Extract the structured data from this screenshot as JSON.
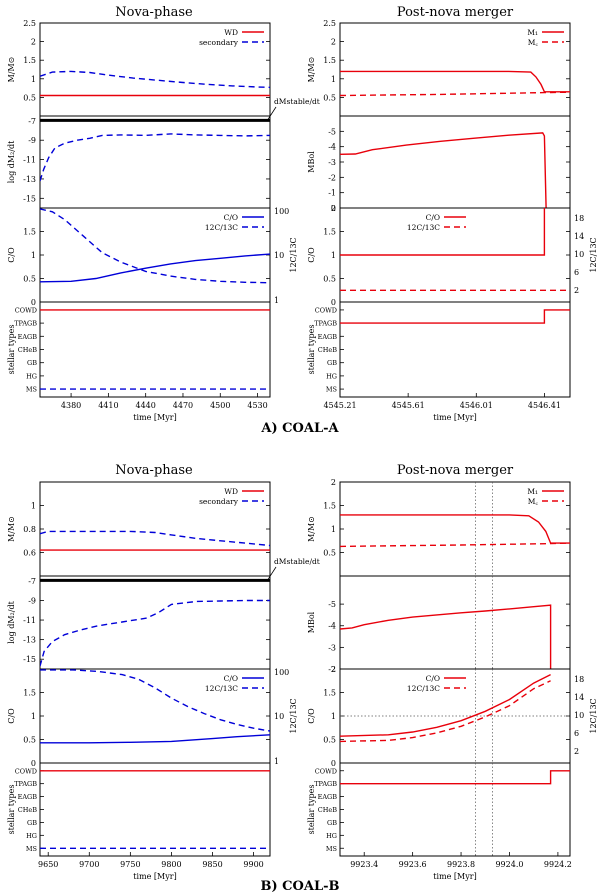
{
  "figure": {
    "panel_a_caption": "A) COAL-A",
    "panel_b_caption": "B) COAL-B",
    "left_header": "Nova-phase",
    "right_header": "Post-nova merger",
    "xlabel": "time [Myr]"
  },
  "colors": {
    "red": "#e8000b",
    "blue": "#0000d8",
    "black": "#000000",
    "grid": "#555555"
  },
  "chart_data": [
    {
      "id": "A-left-mass",
      "type": "line",
      "ylabel": "M/M⊙",
      "xlim": [
        4355,
        4540
      ],
      "ylim": [
        0,
        2.5
      ],
      "yticks": [
        0.5,
        1,
        1.5,
        2,
        2.5
      ],
      "legend": "top-right",
      "series": [
        {
          "name": "WD",
          "color": "red",
          "dash": "",
          "x": [
            4355,
            4540
          ],
          "y": [
            0.55,
            0.55
          ]
        },
        {
          "name": "secondary",
          "color": "blue",
          "dash": "6,4",
          "x": [
            4355,
            4365,
            4380,
            4395,
            4410,
            4430,
            4450,
            4470,
            4490,
            4510,
            4530,
            4540
          ],
          "y": [
            1.07,
            1.18,
            1.2,
            1.17,
            1.1,
            1.02,
            0.96,
            0.9,
            0.85,
            0.81,
            0.78,
            0.77
          ]
        }
      ]
    },
    {
      "id": "A-left-mdot",
      "type": "line",
      "ylabel": "log dM₂/dt",
      "xlim": [
        4355,
        4540
      ],
      "ylim": [
        -16,
        -6.5
      ],
      "yticks": [
        -7,
        -9,
        -11,
        -13,
        -15
      ],
      "annotation": "dMstable/dt",
      "series": [
        {
          "name": "dMstable/dt",
          "color": "black",
          "dash": "",
          "width": 3,
          "x": [
            4355,
            4540
          ],
          "y": [
            -6.95,
            -6.95
          ]
        },
        {
          "name": "dM2/dt",
          "color": "blue",
          "dash": "6,4",
          "x": [
            4355,
            4358,
            4362,
            4367,
            4375,
            4385,
            4395,
            4405,
            4420,
            4440,
            4460,
            4480,
            4500,
            4520,
            4540
          ],
          "y": [
            -13.2,
            -12,
            -10.8,
            -9.8,
            -9.3,
            -9.0,
            -8.8,
            -8.5,
            -8.45,
            -8.5,
            -8.35,
            -8.45,
            -8.5,
            -8.55,
            -8.5
          ]
        }
      ]
    },
    {
      "id": "A-left-co",
      "type": "line",
      "ylabel": "C/O",
      "y2label": "12C/13C",
      "xlim": [
        4355,
        4540
      ],
      "ylim": [
        0,
        2
      ],
      "yticks": [
        0,
        0.5,
        1,
        1.5
      ],
      "y2ticks": [
        "100",
        "10",
        "1"
      ],
      "legend": "top-right",
      "series": [
        {
          "name": "C/O",
          "color": "blue",
          "dash": "",
          "x": [
            4355,
            4380,
            4400,
            4420,
            4440,
            4460,
            4480,
            4500,
            4520,
            4540
          ],
          "y": [
            0.43,
            0.44,
            0.5,
            0.62,
            0.72,
            0.81,
            0.88,
            0.93,
            0.98,
            1.02
          ]
        },
        {
          "name": "12C/13C",
          "color": "blue",
          "dash": "6,4",
          "x": [
            4355,
            4365,
            4375,
            4390,
            4405,
            4420,
            4440,
            4460,
            4480,
            4500,
            4520,
            4540
          ],
          "y": [
            1.98,
            1.92,
            1.75,
            1.4,
            1.05,
            0.85,
            0.65,
            0.55,
            0.48,
            0.44,
            0.42,
            0.41
          ]
        }
      ]
    },
    {
      "id": "A-left-types",
      "type": "line",
      "ylabel": "stellar types",
      "xlim": [
        4355,
        4540
      ],
      "xticks": [
        4380,
        4410,
        4440,
        4470,
        4500,
        4530
      ],
      "categories": [
        "MS",
        "HG",
        "GB",
        "CHeB",
        "EAGB",
        "TPAGB",
        "COWD"
      ],
      "series": [
        {
          "name": "WD",
          "color": "red",
          "dash": "",
          "x": [
            4355,
            4540
          ],
          "y": [
            6,
            6
          ]
        },
        {
          "name": "secondary",
          "color": "blue",
          "dash": "6,4",
          "x": [
            4355,
            4540
          ],
          "y": [
            0,
            0
          ]
        }
      ]
    },
    {
      "id": "A-right-mass",
      "type": "line",
      "ylabel": "M/M⊙",
      "xlim": [
        4545.21,
        4546.56
      ],
      "ylim": [
        0,
        2.5
      ],
      "yticks": [
        0.5,
        1,
        1.5,
        2,
        2.5
      ],
      "legend": "top-right",
      "series": [
        {
          "name": "M1",
          "color": "red",
          "dash": "",
          "x": [
            4545.21,
            4546.2,
            4546.33,
            4546.36,
            4546.39,
            4546.41,
            4546.56
          ],
          "y": [
            1.2,
            1.2,
            1.18,
            1.05,
            0.85,
            0.65,
            0.65
          ]
        },
        {
          "name": "Mc",
          "color": "red",
          "dash": "6,4",
          "x": [
            4545.21,
            4545.8,
            4546.41,
            4546.56
          ],
          "y": [
            0.55,
            0.58,
            0.63,
            0.64
          ]
        }
      ]
    },
    {
      "id": "A-right-mbol",
      "type": "line",
      "ylabel": "MBol",
      "xlim": [
        4545.21,
        4546.56
      ],
      "ylim": [
        0,
        -6
      ],
      "yticks": [
        0,
        -1,
        -2,
        -3,
        -4,
        -5
      ],
      "series": [
        {
          "name": "MBol",
          "color": "red",
          "dash": "",
          "x": [
            4545.21,
            4545.3,
            4545.4,
            4545.6,
            4545.8,
            4546.0,
            4546.2,
            4546.4,
            4546.41,
            4546.42
          ],
          "y": [
            -3.5,
            -3.52,
            -3.8,
            -4.1,
            -4.35,
            -4.55,
            -4.75,
            -4.9,
            -4.7,
            0
          ]
        }
      ]
    },
    {
      "id": "A-right-co",
      "type": "line",
      "ylabel": "C/O",
      "y2label": "12C/13C",
      "xlim": [
        4545.21,
        4546.56
      ],
      "ylim": [
        0,
        2
      ],
      "yticks": [
        0,
        0.5,
        1,
        1.5,
        2
      ],
      "y2ticks": [
        "2",
        "6",
        "10",
        "14",
        "18"
      ],
      "legend": "top-left",
      "series": [
        {
          "name": "C/O",
          "color": "red",
          "dash": "",
          "x": [
            4545.21,
            4546.41,
            4546.41
          ],
          "y": [
            1.0,
            1.0,
            2.0
          ]
        },
        {
          "name": "12C/13C",
          "color": "red",
          "dash": "6,4",
          "x": [
            4545.21,
            4546.56
          ],
          "y": [
            0.25,
            0.25
          ]
        }
      ]
    },
    {
      "id": "A-right-types",
      "type": "line",
      "ylabel": "stellar types",
      "xlim": [
        4545.21,
        4546.56
      ],
      "xticks": [
        4545.21,
        4545.61,
        4546.01,
        4546.41
      ],
      "categories": [
        "MS",
        "HG",
        "GB",
        "CHeB",
        "EAGB",
        "TPAGB",
        "COWD"
      ],
      "series": [
        {
          "name": "type",
          "color": "red",
          "dash": "",
          "x": [
            4545.21,
            4546.41,
            4546.41,
            4546.56
          ],
          "y": [
            5,
            5,
            6,
            6
          ]
        }
      ]
    },
    {
      "id": "B-left-mass",
      "type": "line",
      "ylabel": "M/M⊙",
      "xlim": [
        9640,
        9920
      ],
      "ylim": [
        0.4,
        1.2
      ],
      "yticks": [
        0.6,
        0.8,
        1
      ],
      "legend": "top-right",
      "series": [
        {
          "name": "WD",
          "color": "red",
          "dash": "",
          "x": [
            9640,
            9920
          ],
          "y": [
            0.62,
            0.62
          ]
        },
        {
          "name": "secondary",
          "color": "blue",
          "dash": "6,4",
          "x": [
            9640,
            9650,
            9700,
            9750,
            9780,
            9800,
            9830,
            9860,
            9890,
            9920
          ],
          "y": [
            0.76,
            0.78,
            0.78,
            0.78,
            0.77,
            0.75,
            0.72,
            0.7,
            0.68,
            0.66
          ]
        }
      ]
    },
    {
      "id": "B-left-mdot",
      "type": "line",
      "ylabel": "log dM₂/dt",
      "xlim": [
        9640,
        9920
      ],
      "ylim": [
        -16,
        -6.5
      ],
      "yticks": [
        -7,
        -9,
        -11,
        -13,
        -15
      ],
      "annotation": "dMstable/dt",
      "series": [
        {
          "name": "dMstable/dt",
          "color": "black",
          "dash": "",
          "width": 3,
          "x": [
            9640,
            9920
          ],
          "y": [
            -6.95,
            -6.95
          ]
        },
        {
          "name": "dM2/dt",
          "color": "blue",
          "dash": "6,4",
          "x": [
            9640,
            9645,
            9655,
            9670,
            9690,
            9710,
            9740,
            9770,
            9785,
            9800,
            9830,
            9860,
            9890,
            9920
          ],
          "y": [
            -15.7,
            -14.2,
            -13.2,
            -12.5,
            -12.0,
            -11.6,
            -11.2,
            -10.8,
            -10.2,
            -9.4,
            -9.1,
            -9.05,
            -9.0,
            -9.0
          ]
        }
      ]
    },
    {
      "id": "B-left-co",
      "type": "line",
      "ylabel": "C/O",
      "y2label": "12C/13C",
      "xlim": [
        9640,
        9920
      ],
      "ylim": [
        0,
        2
      ],
      "yticks": [
        0,
        0.5,
        1,
        1.5
      ],
      "y2ticks": [
        "100",
        "10",
        "1"
      ],
      "legend": "top-right",
      "series": [
        {
          "name": "C/O",
          "color": "blue",
          "dash": "",
          "x": [
            9640,
            9700,
            9750,
            9800,
            9850,
            9880,
            9920
          ],
          "y": [
            0.43,
            0.43,
            0.44,
            0.46,
            0.52,
            0.56,
            0.6
          ]
        },
        {
          "name": "12C/13C",
          "color": "blue",
          "dash": "6,4",
          "x": [
            9640,
            9680,
            9710,
            9740,
            9760,
            9780,
            9800,
            9820,
            9840,
            9860,
            9880,
            9900,
            9920
          ],
          "y": [
            1.98,
            1.98,
            1.95,
            1.88,
            1.78,
            1.6,
            1.38,
            1.2,
            1.05,
            0.92,
            0.82,
            0.74,
            0.68
          ]
        }
      ]
    },
    {
      "id": "B-left-types",
      "type": "line",
      "ylabel": "stellar types",
      "xlim": [
        9640,
        9920
      ],
      "xticks": [
        9650,
        9700,
        9750,
        9800,
        9850,
        9900
      ],
      "categories": [
        "MS",
        "HG",
        "GB",
        "CHeB",
        "EAGB",
        "TPAGB",
        "COWD"
      ],
      "series": [
        {
          "name": "WD",
          "color": "red",
          "dash": "",
          "x": [
            9640,
            9920
          ],
          "y": [
            6,
            6
          ]
        },
        {
          "name": "secondary",
          "color": "blue",
          "dash": "6,4",
          "x": [
            9640,
            9920
          ],
          "y": [
            0,
            0
          ]
        }
      ]
    },
    {
      "id": "B-right-mass",
      "type": "line",
      "ylabel": "M/M⊙",
      "xlim": [
        9923.3,
        9924.25
      ],
      "ylim": [
        0,
        2
      ],
      "yticks": [
        0.5,
        1,
        1.5,
        2
      ],
      "legend": "top-right",
      "vlines": [
        9923.86,
        9923.93
      ],
      "series": [
        {
          "name": "M1",
          "color": "red",
          "dash": "",
          "x": [
            9923.3,
            9924.0,
            9924.08,
            9924.12,
            9924.15,
            9924.17,
            9924.25
          ],
          "y": [
            1.3,
            1.3,
            1.28,
            1.15,
            0.95,
            0.7,
            0.7
          ]
        },
        {
          "name": "Mc",
          "color": "red",
          "dash": "6,4",
          "x": [
            9923.3,
            9923.8,
            9924.17,
            9924.25
          ],
          "y": [
            0.63,
            0.66,
            0.69,
            0.7
          ]
        }
      ]
    },
    {
      "id": "B-right-mbol",
      "type": "line",
      "ylabel": "MBol",
      "xlim": [
        9923.3,
        9924.25
      ],
      "ylim": [
        -2,
        -6.3
      ],
      "yticks": [
        -2,
        -3,
        -4,
        -5
      ],
      "vlines": [
        9923.86,
        9923.93
      ],
      "series": [
        {
          "name": "MBol",
          "color": "red",
          "dash": "",
          "x": [
            9923.3,
            9923.35,
            9923.4,
            9923.5,
            9923.6,
            9923.7,
            9923.8,
            9923.9,
            9924.0,
            9924.1,
            9924.17,
            9924.17
          ],
          "y": [
            -3.85,
            -3.9,
            -4.05,
            -4.25,
            -4.4,
            -4.5,
            -4.6,
            -4.68,
            -4.78,
            -4.88,
            -4.95,
            -2
          ]
        }
      ]
    },
    {
      "id": "B-right-co",
      "type": "line",
      "ylabel": "C/O",
      "y2label": "12C/13C",
      "xlim": [
        9923.3,
        9924.25
      ],
      "ylim": [
        0,
        2
      ],
      "yticks": [
        0,
        0.5,
        1,
        1.5,
        2
      ],
      "y2ticks": [
        "2",
        "6",
        "10",
        "14",
        "18"
      ],
      "legend": "top-left",
      "vlines": [
        9923.86,
        9923.93
      ],
      "hline": 1,
      "series": [
        {
          "name": "C/O",
          "color": "red",
          "dash": "",
          "x": [
            9923.3,
            9923.5,
            9923.6,
            9923.7,
            9923.8,
            9923.9,
            9924.0,
            9924.1,
            9924.17,
            9924.17
          ],
          "y": [
            0.57,
            0.6,
            0.66,
            0.76,
            0.9,
            1.1,
            1.35,
            1.7,
            1.88,
            1.88
          ]
        },
        {
          "name": "12C/13C",
          "color": "red",
          "dash": "6,4",
          "x": [
            9923.3,
            9923.5,
            9923.6,
            9923.7,
            9923.8,
            9923.9,
            9924.0,
            9924.1,
            9924.17,
            9924.17
          ],
          "y": [
            0.46,
            0.48,
            0.54,
            0.64,
            0.78,
            0.98,
            1.22,
            1.58,
            1.75,
            1.75
          ]
        }
      ]
    },
    {
      "id": "B-right-types",
      "type": "line",
      "ylabel": "stellar types",
      "xlim": [
        9923.3,
        9924.25
      ],
      "xticks": [
        9923.4,
        9923.6,
        9923.8,
        9924,
        9924.2
      ],
      "categories": [
        "MS",
        "HG",
        "GB",
        "CHeB",
        "EAGB",
        "TPAGB",
        "COWD"
      ],
      "vlines": [
        9923.86,
        9923.93
      ],
      "series": [
        {
          "name": "type",
          "color": "red",
          "dash": "",
          "x": [
            9923.3,
            9924.17,
            9924.17,
            9924.25
          ],
          "y": [
            5,
            5,
            6,
            6
          ]
        }
      ]
    }
  ]
}
